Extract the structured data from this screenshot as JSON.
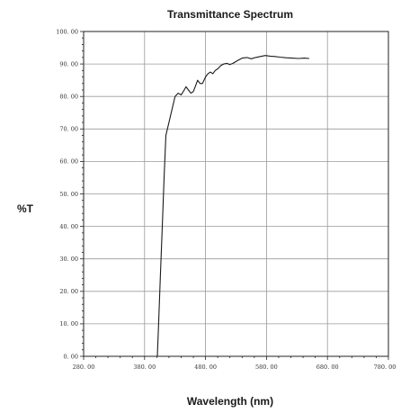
{
  "chart_data": {
    "type": "line",
    "title": "Transmittance Spectrum",
    "xlabel": "Wavelength (nm)",
    "ylabel": "%T",
    "xlim": [
      280,
      780
    ],
    "ylim": [
      0,
      100
    ],
    "x_ticks": [
      280,
      380,
      480,
      580,
      680,
      780
    ],
    "x_tick_labels": [
      "280. 00",
      "380. 00",
      "480. 00",
      "580. 00",
      "680. 00",
      "780. 00"
    ],
    "y_ticks": [
      0,
      10,
      20,
      30,
      40,
      50,
      60,
      70,
      80,
      90,
      100
    ],
    "y_tick_labels": [
      "0. 00",
      "10. 00",
      "20. 00",
      "30. 00",
      "40. 00",
      "50. 00",
      "60. 00",
      "70. 00",
      "80. 00",
      "90. 00",
      "100. 00"
    ],
    "grid": true,
    "legend": "none",
    "series": [
      {
        "color": "#1a1a1a",
        "points": [
          [
            401,
            0
          ],
          [
            403,
            10
          ],
          [
            406,
            25
          ],
          [
            409,
            40
          ],
          [
            412,
            55
          ],
          [
            415,
            68
          ],
          [
            420,
            72
          ],
          [
            425,
            76
          ],
          [
            430,
            80
          ],
          [
            435,
            81
          ],
          [
            440,
            80.5
          ],
          [
            445,
            82
          ],
          [
            448,
            83
          ],
          [
            452,
            82
          ],
          [
            456,
            81
          ],
          [
            460,
            81.5
          ],
          [
            463,
            83
          ],
          [
            467,
            85
          ],
          [
            471,
            84
          ],
          [
            475,
            84
          ],
          [
            480,
            86
          ],
          [
            484,
            87
          ],
          [
            488,
            87.5
          ],
          [
            492,
            87
          ],
          [
            496,
            88
          ],
          [
            500,
            88.5
          ],
          [
            505,
            89.5
          ],
          [
            510,
            90
          ],
          [
            515,
            90.2
          ],
          [
            520,
            89.8
          ],
          [
            525,
            90.2
          ],
          [
            532,
            91
          ],
          [
            540,
            91.8
          ],
          [
            548,
            92
          ],
          [
            555,
            91.6
          ],
          [
            562,
            92
          ],
          [
            570,
            92.3
          ],
          [
            578,
            92.6
          ],
          [
            586,
            92.4
          ],
          [
            594,
            92.3
          ],
          [
            602,
            92.1
          ],
          [
            612,
            91.9
          ],
          [
            622,
            91.8
          ],
          [
            632,
            91.7
          ],
          [
            642,
            91.8
          ],
          [
            650,
            91.7
          ]
        ]
      }
    ]
  }
}
